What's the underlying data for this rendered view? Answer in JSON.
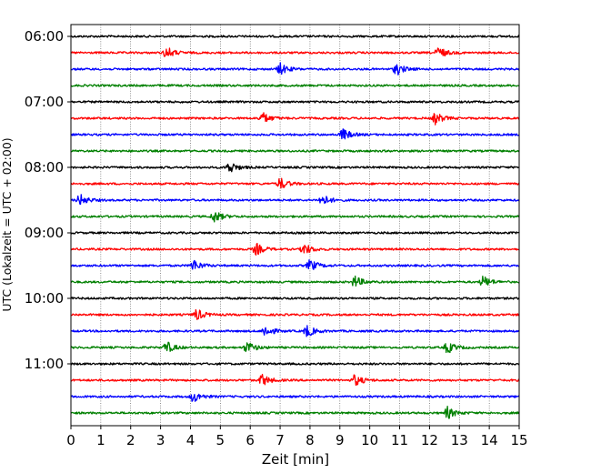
{
  "chart_data": {
    "type": "line",
    "title": "",
    "xlabel": "Zeit  [min]",
    "ylabel": "UTC (Lokalzeit = UTC + 02:00)",
    "xlim": [
      0,
      15
    ],
    "x_ticks": [
      "0",
      "1",
      "2",
      "3",
      "4",
      "5",
      "6",
      "7",
      "8",
      "9",
      "10",
      "11",
      "12",
      "13",
      "14",
      "15"
    ],
    "y_ticks": [
      "06:00",
      "07:00",
      "08:00",
      "09:00",
      "10:00",
      "11:00"
    ],
    "grid": "vertical dotted",
    "trace_interval_min": 15,
    "start_time": "06:00",
    "colors_cycle": [
      "#000000",
      "#ff0000",
      "#0000ff",
      "#008000"
    ],
    "series": [
      {
        "start": "06:00",
        "color": "#000000",
        "events": []
      },
      {
        "start": "06:15",
        "color": "#ff0000",
        "events": [
          3.2,
          12.3
        ]
      },
      {
        "start": "06:30",
        "color": "#0000ff",
        "events": [
          7.0,
          10.9
        ]
      },
      {
        "start": "06:45",
        "color": "#008000",
        "events": []
      },
      {
        "start": "07:00",
        "color": "#000000",
        "events": []
      },
      {
        "start": "07:15",
        "color": "#ff0000",
        "events": [
          6.4,
          12.2
        ]
      },
      {
        "start": "07:30",
        "color": "#0000ff",
        "events": [
          9.1
        ]
      },
      {
        "start": "07:45",
        "color": "#008000",
        "events": []
      },
      {
        "start": "08:00",
        "color": "#000000",
        "events": [
          5.3
        ]
      },
      {
        "start": "08:15",
        "color": "#ff0000",
        "events": [
          7.0
        ]
      },
      {
        "start": "08:30",
        "color": "#0000ff",
        "events": [
          0.3,
          8.4
        ]
      },
      {
        "start": "08:45",
        "color": "#008000",
        "events": [
          4.8
        ]
      },
      {
        "start": "09:00",
        "color": "#000000",
        "events": []
      },
      {
        "start": "09:15",
        "color": "#ff0000",
        "events": [
          6.2,
          7.8
        ]
      },
      {
        "start": "09:30",
        "color": "#0000ff",
        "events": [
          4.1,
          8.0
        ]
      },
      {
        "start": "09:45",
        "color": "#008000",
        "events": [
          9.5,
          13.8
        ]
      },
      {
        "start": "10:00",
        "color": "#000000",
        "events": []
      },
      {
        "start": "10:15",
        "color": "#ff0000",
        "events": [
          4.2
        ]
      },
      {
        "start": "10:30",
        "color": "#0000ff",
        "events": [
          6.5,
          7.9
        ]
      },
      {
        "start": "10:45",
        "color": "#008000",
        "events": [
          3.2,
          5.9,
          12.6
        ]
      },
      {
        "start": "11:00",
        "color": "#000000",
        "events": []
      },
      {
        "start": "11:15",
        "color": "#ff0000",
        "events": [
          6.4,
          9.5
        ]
      },
      {
        "start": "11:30",
        "color": "#0000ff",
        "events": [
          4.1
        ]
      },
      {
        "start": "11:45",
        "color": "#008000",
        "events": [
          12.6
        ]
      }
    ]
  }
}
